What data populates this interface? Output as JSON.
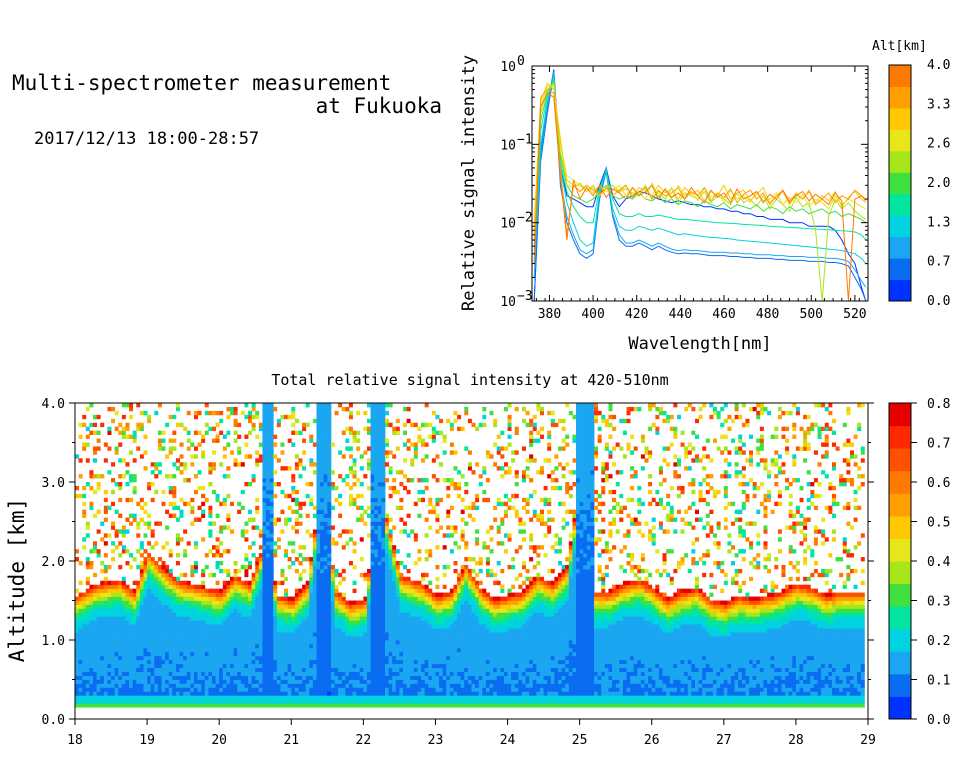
{
  "header": {
    "title_line1": "Multi-spectrometer measurement",
    "title_line2": "at Fukuoka",
    "date_range": "2017/12/13 18:00-28:57"
  },
  "chart_data": [
    {
      "type": "line",
      "xlabel": "Wavelength[nm]",
      "ylabel": "Relative signal intensity",
      "xlim": [
        372,
        526
      ],
      "ylim": [
        0.001,
        1
      ],
      "yscale": "log",
      "x_ticks": [
        380,
        400,
        420,
        440,
        460,
        480,
        500,
        520
      ],
      "y_tick_labels": [
        "10",
        "10",
        "10",
        "10"
      ],
      "y_tick_exponents": [
        "0",
        "−1",
        "−2",
        "−3"
      ],
      "y_tick_values": [
        1,
        0.1,
        0.01,
        0.001
      ],
      "colorbar": {
        "title": "Alt[km]",
        "tick_labels": [
          "4.0",
          "3.3",
          "2.6",
          "2.0",
          "1.3",
          "0.7",
          "0.0"
        ],
        "range": [
          0,
          4
        ],
        "colors": [
          "#0032ff",
          "#0a6cf0",
          "#1aa6f0",
          "#00d2e0",
          "#00e6a0",
          "#40e040",
          "#a6e61a",
          "#e6e61a",
          "#ffc800",
          "#ffa000",
          "#ff7a00"
        ]
      },
      "x": [
        373,
        376,
        379,
        382,
        385,
        388,
        391,
        394,
        397,
        400,
        403,
        406,
        409,
        412,
        415,
        418,
        421,
        424,
        427,
        430,
        433,
        436,
        439,
        442,
        445,
        448,
        451,
        454,
        457,
        460,
        463,
        466,
        469,
        472,
        475,
        478,
        481,
        484,
        487,
        490,
        493,
        496,
        499,
        502,
        505,
        508,
        511,
        514,
        517,
        520,
        523,
        525
      ],
      "series": [
        {
          "alt": 0.0,
          "color": "#0032ff",
          "values": [
            0.001,
            0.08,
            0.3,
            0.9,
            0.05,
            0.022,
            0.02,
            0.018,
            0.016,
            0.016,
            0.03,
            0.05,
            0.022,
            0.016,
            0.02,
            0.022,
            0.025,
            0.024,
            0.022,
            0.02,
            0.019,
            0.018,
            0.019,
            0.018,
            0.017,
            0.017,
            0.016,
            0.016,
            0.015,
            0.015,
            0.014,
            0.014,
            0.013,
            0.013,
            0.012,
            0.012,
            0.011,
            0.011,
            0.011,
            0.01,
            0.01,
            0.01,
            0.009,
            0.009,
            0.009,
            0.009,
            0.008,
            0.006,
            0.004,
            0.003,
            0.0015,
            0.001
          ]
        },
        {
          "alt": 0.3,
          "color": "#0a6cf0",
          "values": [
            0.001,
            0.06,
            0.25,
            0.8,
            0.03,
            0.01,
            0.006,
            0.004,
            0.0035,
            0.004,
            0.02,
            0.045,
            0.012,
            0.006,
            0.005,
            0.005,
            0.0055,
            0.005,
            0.0045,
            0.005,
            0.0045,
            0.0042,
            0.004,
            0.0041,
            0.004,
            0.004,
            0.0039,
            0.0038,
            0.0038,
            0.0038,
            0.0037,
            0.0037,
            0.0036,
            0.0036,
            0.0035,
            0.0035,
            0.0035,
            0.0034,
            0.0034,
            0.0033,
            0.0033,
            0.0033,
            0.0032,
            0.0032,
            0.0032,
            0.0031,
            0.0031,
            0.003,
            0.0028,
            0.002,
            0.0014,
            0.001
          ]
        },
        {
          "alt": 0.7,
          "color": "#1aa6f0",
          "values": [
            0.002,
            0.07,
            0.3,
            0.85,
            0.035,
            0.012,
            0.007,
            0.0045,
            0.004,
            0.0045,
            0.022,
            0.05,
            0.013,
            0.007,
            0.0055,
            0.0055,
            0.006,
            0.0055,
            0.005,
            0.0055,
            0.005,
            0.0046,
            0.0044,
            0.0045,
            0.0044,
            0.0044,
            0.0043,
            0.0042,
            0.0042,
            0.0042,
            0.0041,
            0.0041,
            0.004,
            0.004,
            0.0039,
            0.0039,
            0.0039,
            0.0038,
            0.0038,
            0.0037,
            0.0037,
            0.0037,
            0.0036,
            0.0036,
            0.0036,
            0.0035,
            0.0035,
            0.0034,
            0.0032,
            0.0025,
            0.0018,
            0.0015
          ]
        },
        {
          "alt": 1.0,
          "color": "#00d2e0",
          "values": [
            0.003,
            0.1,
            0.35,
            0.75,
            0.05,
            0.018,
            0.01,
            0.006,
            0.005,
            0.0055,
            0.025,
            0.045,
            0.015,
            0.009,
            0.008,
            0.008,
            0.009,
            0.0085,
            0.008,
            0.0085,
            0.008,
            0.0075,
            0.007,
            0.0072,
            0.007,
            0.0068,
            0.0066,
            0.0065,
            0.0064,
            0.0063,
            0.0062,
            0.006,
            0.0059,
            0.0058,
            0.0057,
            0.0056,
            0.0055,
            0.0054,
            0.0053,
            0.0052,
            0.0051,
            0.005,
            0.0049,
            0.0048,
            0.0047,
            0.0046,
            0.0045,
            0.0044,
            0.0042,
            0.004,
            0.0035,
            0.003
          ]
        },
        {
          "alt": 1.3,
          "color": "#00e6a0",
          "values": [
            0.004,
            0.15,
            0.4,
            0.7,
            0.06,
            0.025,
            0.016,
            0.012,
            0.01,
            0.01,
            0.028,
            0.045,
            0.02,
            0.013,
            0.012,
            0.012,
            0.013,
            0.012,
            0.012,
            0.0125,
            0.012,
            0.0115,
            0.011,
            0.011,
            0.0108,
            0.0106,
            0.0104,
            0.0102,
            0.01,
            0.0099,
            0.0098,
            0.0097,
            0.0095,
            0.0094,
            0.0093,
            0.0092,
            0.009,
            0.0089,
            0.0088,
            0.0087,
            0.0086,
            0.0085,
            0.0084,
            0.0083,
            0.0082,
            0.0081,
            0.008,
            0.0079,
            0.0078,
            0.0076,
            0.007,
            0.006
          ]
        },
        {
          "alt": 1.7,
          "color": "#40e040",
          "values": [
            0.005,
            0.2,
            0.45,
            0.65,
            0.07,
            0.03,
            0.022,
            0.02,
            0.018,
            0.02,
            0.025,
            0.03,
            0.022,
            0.02,
            0.022,
            0.02,
            0.024,
            0.02,
            0.019,
            0.022,
            0.018,
            0.02,
            0.017,
            0.019,
            0.018,
            0.016,
            0.019,
            0.017,
            0.016,
            0.018,
            0.015,
            0.017,
            0.016,
            0.015,
            0.017,
            0.014,
            0.016,
            0.015,
            0.013,
            0.016,
            0.014,
            0.015,
            0.013,
            0.014,
            0.015,
            0.013,
            0.014,
            0.012,
            0.013,
            0.012,
            0.011,
            0.01
          ]
        },
        {
          "alt": 2.2,
          "color": "#a6e61a",
          "values": [
            0.006,
            0.25,
            0.5,
            0.6,
            0.08,
            0.035,
            0.03,
            0.03,
            0.025,
            0.028,
            0.022,
            0.028,
            0.03,
            0.025,
            0.027,
            0.024,
            0.022,
            0.03,
            0.02,
            0.025,
            0.02,
            0.028,
            0.018,
            0.024,
            0.022,
            0.02,
            0.025,
            0.018,
            0.022,
            0.02,
            0.017,
            0.024,
            0.018,
            0.02,
            0.016,
            0.022,
            0.015,
            0.02,
            0.017,
            0.014,
            0.021,
            0.016,
            0.018,
            0.008,
            0.001,
            0.012,
            0.02,
            0.015,
            0.018,
            0.014,
            0.012,
            0.011
          ]
        },
        {
          "alt": 2.6,
          "color": "#e6e61a",
          "values": [
            0.008,
            0.3,
            0.55,
            0.55,
            0.1,
            0.04,
            0.035,
            0.03,
            0.028,
            0.024,
            0.03,
            0.025,
            0.026,
            0.03,
            0.022,
            0.028,
            0.024,
            0.02,
            0.032,
            0.022,
            0.026,
            0.02,
            0.03,
            0.022,
            0.025,
            0.019,
            0.028,
            0.021,
            0.024,
            0.018,
            0.026,
            0.02,
            0.022,
            0.018,
            0.025,
            0.019,
            0.02,
            0.024,
            0.017,
            0.021,
            0.018,
            0.023,
            0.016,
            0.02,
            0.018,
            0.015,
            0.022,
            0.017,
            0.02,
            0.018,
            0.016,
            0.015
          ]
        },
        {
          "alt": 3.0,
          "color": "#ffc800",
          "values": [
            0.01,
            0.35,
            0.6,
            0.5,
            0.12,
            0.03,
            0.028,
            0.032,
            0.025,
            0.03,
            0.022,
            0.027,
            0.03,
            0.024,
            0.03,
            0.022,
            0.028,
            0.026,
            0.022,
            0.03,
            0.024,
            0.027,
            0.02,
            0.028,
            0.023,
            0.026,
            0.019,
            0.025,
            0.022,
            0.03,
            0.02,
            0.024,
            0.026,
            0.019,
            0.023,
            0.028,
            0.018,
            0.022,
            0.025,
            0.017,
            0.024,
            0.02,
            0.026,
            0.018,
            0.022,
            0.019,
            0.025,
            0.016,
            0.021,
            0.025,
            0.02,
            0.018
          ]
        },
        {
          "alt": 3.5,
          "color": "#ffa000",
          "values": [
            0.004,
            0.4,
            0.5,
            0.45,
            0.05,
            0.007,
            0.03,
            0.025,
            0.03,
            0.026,
            0.023,
            0.028,
            0.022,
            0.026,
            0.03,
            0.021,
            0.025,
            0.028,
            0.02,
            0.026,
            0.022,
            0.024,
            0.028,
            0.02,
            0.025,
            0.022,
            0.028,
            0.019,
            0.024,
            0.021,
            0.027,
            0.018,
            0.023,
            0.026,
            0.02,
            0.024,
            0.017,
            0.022,
            0.026,
            0.019,
            0.023,
            0.02,
            0.025,
            0.017,
            0.02,
            0.024,
            0.018,
            0.022,
            0.02,
            0.026,
            0.022,
            0.02
          ]
        },
        {
          "alt": 4.0,
          "color": "#ff7a00",
          "values": [
            0.003,
            0.3,
            0.45,
            0.4,
            0.04,
            0.006,
            0.035,
            0.02,
            0.028,
            0.022,
            0.03,
            0.021,
            0.027,
            0.024,
            0.02,
            0.028,
            0.022,
            0.025,
            0.03,
            0.02,
            0.027,
            0.021,
            0.024,
            0.02,
            0.028,
            0.022,
            0.018,
            0.026,
            0.021,
            0.024,
            0.018,
            0.027,
            0.02,
            0.022,
            0.025,
            0.018,
            0.023,
            0.02,
            0.026,
            0.018,
            0.022,
            0.025,
            0.019,
            0.023,
            0.02,
            0.017,
            0.024,
            0.019,
            0.001,
            0.02,
            0.022,
            0.019
          ]
        }
      ]
    },
    {
      "type": "heatmap",
      "title": "Total relative signal intensity at 420-510nm",
      "ylabel": "Altitude [km]",
      "xlim": [
        18,
        29
      ],
      "ylim": [
        0,
        4
      ],
      "x_ticks": [
        "18",
        "19",
        "20",
        "21",
        "22",
        "23",
        "24",
        "25",
        "26",
        "27",
        "28",
        "29"
      ],
      "y_ticks": [
        "0.0",
        "1.0",
        "2.0",
        "3.0",
        "4.0"
      ],
      "data_xrange": [
        18,
        28.95
      ],
      "data_yrange": [
        0.15,
        4.0
      ],
      "colorbar": {
        "tick_labels": [
          "0.8",
          "0.7",
          "0.6",
          "0.5",
          "0.4",
          "0.3",
          "0.2",
          "0.1",
          "0.0"
        ],
        "range": [
          0,
          0.8
        ],
        "colors": [
          "#0032ff",
          "#0a6cf0",
          "#1aa6f0",
          "#00d2e0",
          "#00e6a0",
          "#40e040",
          "#a6e61a",
          "#e6e61a",
          "#ffc800",
          "#ffa000",
          "#ff7a00",
          "#ff5000",
          "#ff2800",
          "#e60000"
        ]
      },
      "cloud_base_km": [
        [
          18.0,
          1.55
        ],
        [
          18.3,
          1.7
        ],
        [
          18.6,
          1.75
        ],
        [
          18.8,
          1.6
        ],
        [
          19.0,
          2.1
        ],
        [
          19.2,
          1.9
        ],
        [
          19.4,
          1.75
        ],
        [
          19.6,
          1.7
        ],
        [
          19.8,
          1.65
        ],
        [
          20.0,
          1.6
        ],
        [
          20.2,
          1.8
        ],
        [
          20.4,
          1.7
        ],
        [
          20.6,
          2.2
        ],
        [
          20.8,
          1.55
        ],
        [
          21.0,
          1.5
        ],
        [
          21.2,
          1.7
        ],
        [
          21.4,
          3.0
        ],
        [
          21.6,
          1.6
        ],
        [
          21.8,
          1.45
        ],
        [
          22.0,
          1.5
        ],
        [
          22.2,
          2.9
        ],
        [
          22.5,
          1.8
        ],
        [
          22.8,
          1.7
        ],
        [
          23.0,
          1.55
        ],
        [
          23.2,
          1.6
        ],
        [
          23.4,
          1.95
        ],
        [
          23.6,
          1.65
        ],
        [
          23.8,
          1.5
        ],
        [
          24.0,
          1.55
        ],
        [
          24.2,
          1.6
        ],
        [
          24.4,
          1.8
        ],
        [
          24.6,
          1.7
        ],
        [
          24.8,
          1.9
        ],
        [
          25.0,
          3.1
        ],
        [
          25.2,
          1.6
        ],
        [
          25.4,
          1.6
        ],
        [
          25.6,
          1.7
        ],
        [
          25.8,
          1.75
        ],
        [
          26.0,
          1.65
        ],
        [
          26.2,
          1.5
        ],
        [
          26.4,
          1.6
        ],
        [
          26.6,
          1.65
        ],
        [
          26.8,
          1.5
        ],
        [
          27.0,
          1.45
        ],
        [
          27.2,
          1.55
        ],
        [
          27.4,
          1.5
        ],
        [
          27.6,
          1.55
        ],
        [
          27.8,
          1.6
        ],
        [
          28.0,
          1.7
        ],
        [
          28.2,
          1.65
        ],
        [
          28.4,
          1.55
        ],
        [
          28.6,
          1.6
        ],
        [
          28.95,
          1.6
        ]
      ],
      "clear_columns": [
        [
          20.6,
          20.75
        ],
        [
          21.35,
          21.55
        ],
        [
          22.1,
          22.3
        ],
        [
          24.95,
          25.2
        ]
      ]
    }
  ]
}
